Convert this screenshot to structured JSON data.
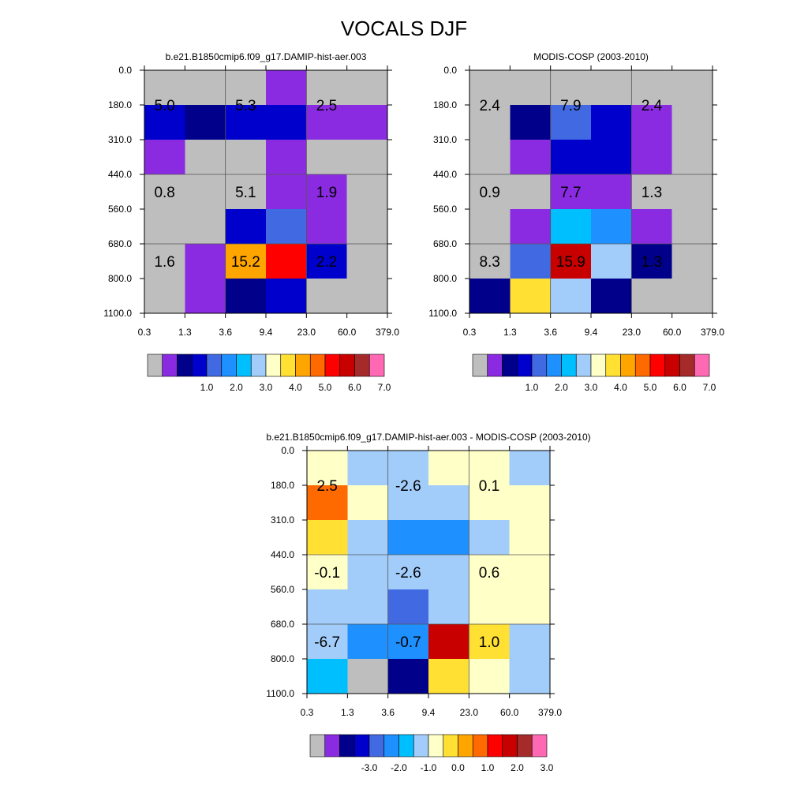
{
  "main_title": "VOCALS DJF",
  "chart_data": [
    {
      "type": "heatmap",
      "title": "b.e21.B1850cmip6.f09_g17.DAMIP-hist-aer.003",
      "x_ticks": [
        "0.3",
        "1.3",
        "3.6",
        "9.4",
        "23.0",
        "60.0",
        "379.0"
      ],
      "y_ticks": [
        "0.0",
        "180.0",
        "310.0",
        "440.0",
        "560.0",
        "680.0",
        "800.0",
        "1100.0"
      ],
      "cells": [
        [
          0,
          0,
          0,
          1,
          0,
          0
        ],
        [
          3,
          2,
          3,
          3,
          1,
          1
        ],
        [
          1,
          0,
          0,
          1,
          0,
          0
        ],
        [
          0,
          0,
          0,
          1,
          1,
          0
        ],
        [
          0,
          0,
          3,
          4,
          1,
          0
        ],
        [
          0,
          1,
          10,
          12,
          3,
          0
        ],
        [
          0,
          1,
          2,
          3,
          0,
          0
        ]
      ],
      "annotations": [
        {
          "row": 1,
          "col": 0.5,
          "text": "5.0"
        },
        {
          "row": 1,
          "col": 2.5,
          "text": "5.3"
        },
        {
          "row": 1,
          "col": 4.5,
          "text": "2.5"
        },
        {
          "row": 3.5,
          "col": 0.5,
          "text": "0.8"
        },
        {
          "row": 3.5,
          "col": 2.5,
          "text": "5.1"
        },
        {
          "row": 3.5,
          "col": 4.5,
          "text": "1.9"
        },
        {
          "row": 5.5,
          "col": 0.5,
          "text": "1.6"
        },
        {
          "row": 5.5,
          "col": 2.5,
          "text": "15.2"
        },
        {
          "row": 5.5,
          "col": 4.5,
          "text": "2.2"
        }
      ],
      "colorbar": {
        "colors": [
          "#bebebe",
          "#8a2be2",
          "#00008b",
          "#0000cd",
          "#4169e1",
          "#1e90ff",
          "#00bfff",
          "#a2cdfa",
          "#ffffc8",
          "#ffe033",
          "#ffa500",
          "#ff6a00",
          "#ff0000",
          "#c80000",
          "#a52a2a",
          "#ff69b4"
        ],
        "labels": [
          "1.0",
          "2.0",
          "3.0",
          "4.0",
          "5.0",
          "6.0",
          "7.0"
        ]
      }
    },
    {
      "type": "heatmap",
      "title": "MODIS-COSP (2003-2010)",
      "x_ticks": [
        "0.3",
        "1.3",
        "3.6",
        "9.4",
        "23.0",
        "60.0",
        "379.0"
      ],
      "y_ticks": [
        "0.0",
        "180.0",
        "310.0",
        "440.0",
        "560.0",
        "680.0",
        "800.0",
        "1100.0"
      ],
      "cells": [
        [
          0,
          0,
          0,
          0,
          0,
          0
        ],
        [
          0,
          2,
          4,
          3,
          1,
          0
        ],
        [
          0,
          1,
          3,
          3,
          1,
          0
        ],
        [
          0,
          0,
          1,
          1,
          0,
          0
        ],
        [
          0,
          1,
          6,
          5,
          1,
          0
        ],
        [
          0,
          4,
          13,
          7,
          2,
          0
        ],
        [
          2,
          9,
          7,
          2,
          0,
          0
        ]
      ],
      "annotations": [
        {
          "row": 1,
          "col": 0.5,
          "text": "2.4"
        },
        {
          "row": 1,
          "col": 2.5,
          "text": "7.9"
        },
        {
          "row": 1,
          "col": 4.5,
          "text": "2.4"
        },
        {
          "row": 3.5,
          "col": 0.5,
          "text": "0.9"
        },
        {
          "row": 3.5,
          "col": 2.5,
          "text": "7.7"
        },
        {
          "row": 3.5,
          "col": 4.5,
          "text": "1.3"
        },
        {
          "row": 5.5,
          "col": 0.5,
          "text": "8.3"
        },
        {
          "row": 5.5,
          "col": 2.5,
          "text": "15.9"
        },
        {
          "row": 5.5,
          "col": 4.5,
          "text": "1.3"
        }
      ],
      "colorbar": {
        "colors": [
          "#bebebe",
          "#8a2be2",
          "#00008b",
          "#0000cd",
          "#4169e1",
          "#1e90ff",
          "#00bfff",
          "#a2cdfa",
          "#ffffc8",
          "#ffe033",
          "#ffa500",
          "#ff6a00",
          "#ff0000",
          "#c80000",
          "#a52a2a",
          "#ff69b4"
        ],
        "labels": [
          "1.0",
          "2.0",
          "3.0",
          "4.0",
          "5.0",
          "6.0",
          "7.0"
        ]
      }
    },
    {
      "type": "heatmap",
      "title": "b.e21.B1850cmip6.f09_g17.DAMIP-hist-aer.003 - MODIS-COSP (2003-2010)",
      "x_ticks": [
        "0.3",
        "1.3",
        "3.6",
        "9.4",
        "23.0",
        "60.0",
        "379.0"
      ],
      "y_ticks": [
        "0.0",
        "180.0",
        "310.0",
        "440.0",
        "560.0",
        "680.0",
        "800.0",
        "1100.0"
      ],
      "cells": [
        [
          8,
          7,
          7,
          8,
          8,
          7
        ],
        [
          11,
          8,
          7,
          7,
          8,
          8
        ],
        [
          9,
          7,
          5,
          5,
          7,
          8
        ],
        [
          8,
          7,
          7,
          7,
          8,
          8
        ],
        [
          7,
          7,
          4,
          7,
          8,
          8
        ],
        [
          7,
          5,
          5,
          13,
          9,
          7
        ],
        [
          6,
          0,
          2,
          9,
          8,
          7
        ]
      ],
      "annotations": [
        {
          "row": 1,
          "col": 0.5,
          "text": "2.5"
        },
        {
          "row": 1,
          "col": 2.5,
          "text": "-2.6"
        },
        {
          "row": 1,
          "col": 4.5,
          "text": "0.1"
        },
        {
          "row": 3.5,
          "col": 0.5,
          "text": "-0.1"
        },
        {
          "row": 3.5,
          "col": 2.5,
          "text": "-2.6"
        },
        {
          "row": 3.5,
          "col": 4.5,
          "text": "0.6"
        },
        {
          "row": 5.5,
          "col": 0.5,
          "text": "-6.7"
        },
        {
          "row": 5.5,
          "col": 2.5,
          "text": "-0.7"
        },
        {
          "row": 5.5,
          "col": 4.5,
          "text": "1.0"
        }
      ],
      "colorbar": {
        "colors": [
          "#bebebe",
          "#8a2be2",
          "#00008b",
          "#0000cd",
          "#4169e1",
          "#1e90ff",
          "#00bfff",
          "#a2cdfa",
          "#ffffc8",
          "#ffe033",
          "#ffa500",
          "#ff6a00",
          "#ff0000",
          "#c80000",
          "#a52a2a",
          "#ff69b4"
        ],
        "labels": [
          "-3.0",
          "-2.0",
          "-1.0",
          "0.0",
          "1.0",
          "2.0",
          "3.0"
        ]
      }
    }
  ]
}
